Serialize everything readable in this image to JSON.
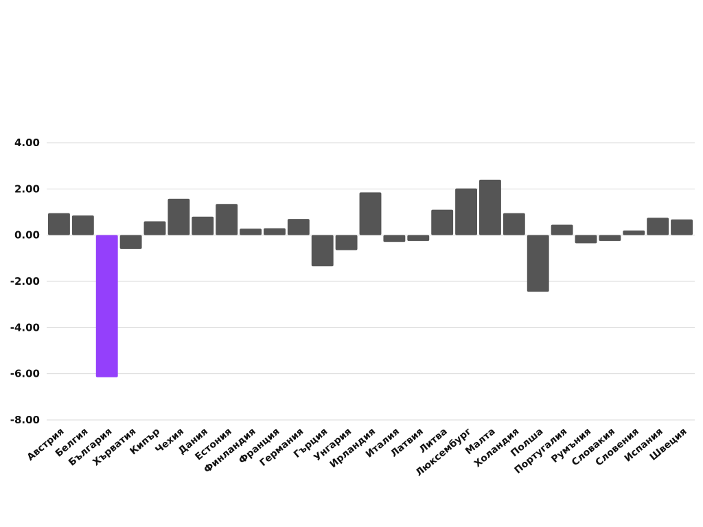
{
  "chart_data": {
    "type": "bar",
    "categories": [
      "Австрия",
      "Белгия",
      "България",
      "Хърватия",
      "Кипър",
      "Чехия",
      "Дания",
      "Естония",
      "Финландия",
      "Франция",
      "Германия",
      "Гърция",
      "Унгария",
      "Ирландия",
      "Италия",
      "Латвия",
      "Литва",
      "Люксембург",
      "Малта",
      "Холандия",
      "Полша",
      "Португалия",
      "Румъния",
      "Словакия",
      "Словения",
      "Испания",
      "Швеция"
    ],
    "values": [
      0.95,
      0.85,
      -6.15,
      -0.6,
      0.6,
      1.57,
      0.8,
      1.35,
      0.28,
      0.3,
      0.7,
      -1.35,
      -0.65,
      1.85,
      -0.3,
      -0.25,
      1.1,
      2.02,
      2.4,
      0.95,
      -2.45,
      0.45,
      -0.35,
      -0.25,
      0.2,
      0.75,
      0.68
    ],
    "highlight_index": 2,
    "colors": {
      "bar": "#555555",
      "highlight": "#9440fb",
      "grid": "#d9d9d9",
      "text": "#111111"
    },
    "ylim": [
      -8,
      4
    ],
    "yticks": [
      4,
      2,
      0,
      -2,
      -4,
      -6,
      -8
    ],
    "ytick_labels": [
      "4.00",
      "2.00",
      "0.00",
      "-2.00",
      "-4.00",
      "-6.00",
      "-8.00"
    ],
    "grid": true,
    "title": "",
    "xlabel": "",
    "ylabel": ""
  }
}
